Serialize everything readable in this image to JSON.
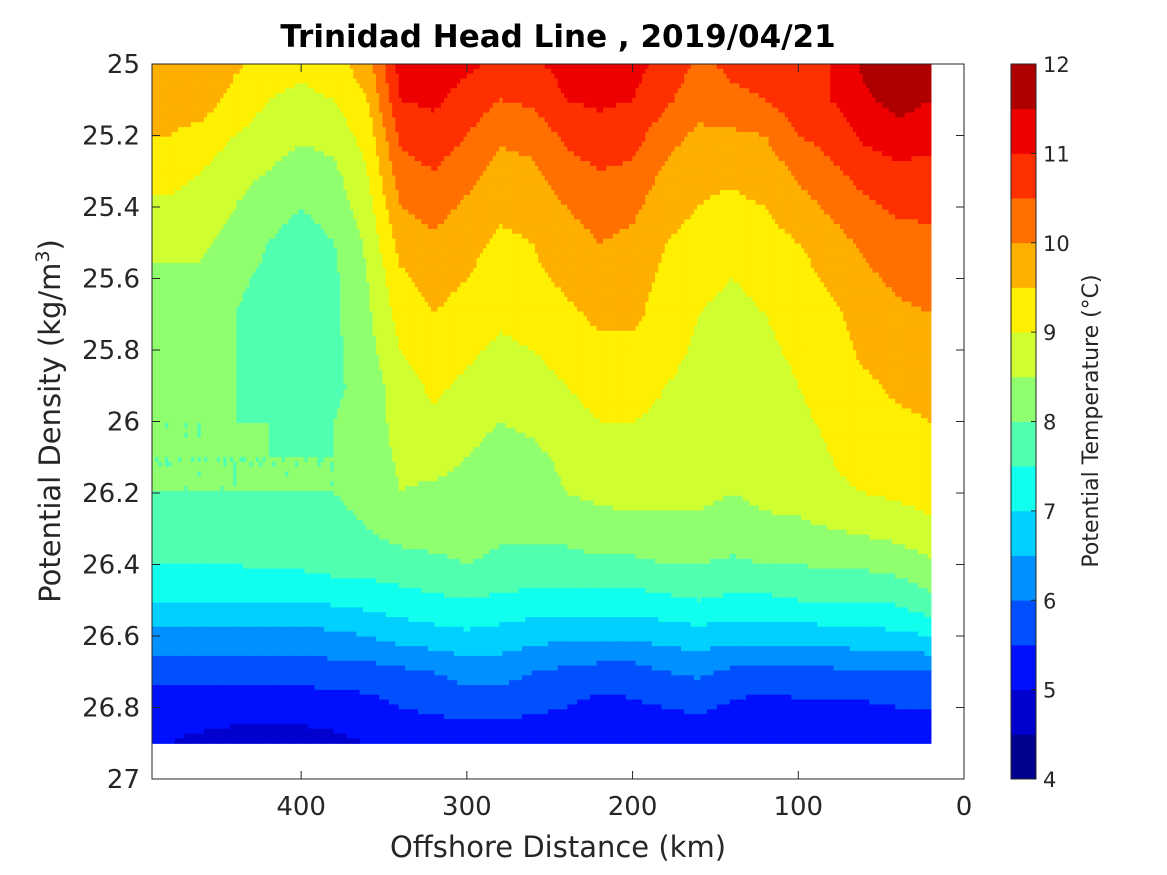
{
  "chart_data": {
    "type": "heatmap",
    "subtype": "filled-contour",
    "title": "Trinidad Head Line , 2019/04/21",
    "xlabel": "Offshore Distance (km)",
    "ylabel": "Potential Density (kg/m3)",
    "ylabel_main": "Potential Density (kg/m",
    "ylabel_sup": "3",
    "ylabel_close": ")",
    "x_axis": {
      "range": [
        490,
        0
      ],
      "reversed": true,
      "ticks": [
        400,
        300,
        200,
        100,
        0
      ],
      "tick_labels": [
        "400",
        "300",
        "200",
        "100",
        "0"
      ]
    },
    "y_axis": {
      "range": [
        25,
        27
      ],
      "reversed": true,
      "ticks": [
        25,
        25.2,
        25.4,
        25.6,
        25.8,
        26,
        26.2,
        26.4,
        26.6,
        26.8,
        27
      ],
      "tick_labels": [
        "25",
        "25.2",
        "25.4",
        "25.6",
        "25.8",
        "26",
        "26.2",
        "26.4",
        "26.6",
        "26.8",
        "27"
      ]
    },
    "colorbar": {
      "label": "Potential Temperature (°C)",
      "range": [
        4,
        12
      ],
      "ticks": [
        4,
        5,
        6,
        7,
        8,
        9,
        10,
        11,
        12
      ],
      "tick_labels": [
        "4",
        "5",
        "6",
        "7",
        "8",
        "9",
        "10",
        "11",
        "12"
      ],
      "levels": [
        4,
        4.5,
        5,
        5.5,
        6,
        6.5,
        7,
        7.5,
        8,
        8.5,
        9,
        9.5,
        10,
        10.5,
        11,
        11.5,
        12
      ],
      "colors": [
        "#00008f",
        "#0000cf",
        "#0010ff",
        "#0050ff",
        "#0090ff",
        "#00d0ff",
        "#10ffef",
        "#50ffaf",
        "#90ff6f",
        "#cfff30",
        "#ffef00",
        "#ffaf00",
        "#ff7000",
        "#ff3000",
        "#ef0000",
        "#af0000"
      ]
    },
    "x": [
      20,
      40,
      60,
      80,
      100,
      120,
      140,
      160,
      180,
      200,
      220,
      240,
      260,
      280,
      300,
      320,
      340,
      360,
      380,
      400,
      420,
      440,
      460,
      480,
      490
    ],
    "y": [
      25,
      25.1,
      25.2,
      25.3,
      25.4,
      25.5,
      25.6,
      25.7,
      25.8,
      25.9,
      26,
      26.1,
      26.2,
      26.3,
      26.4,
      26.5,
      26.6,
      26.7,
      26.8,
      26.9
    ],
    "z": [
      [
        11.7,
        12.0,
        11.6,
        11.0,
        11.0,
        10.7,
        10.6,
        10.4,
        10.8,
        11.2,
        11.3,
        11.2,
        10.9,
        10.9,
        11.1,
        11.3,
        11.2,
        9.8,
        9.3,
        9.1,
        9.2,
        9.6,
        10.0,
        10.0,
        10.0
      ],
      [
        11.5,
        11.7,
        11.4,
        11.0,
        10.8,
        10.5,
        10.4,
        10.2,
        10.6,
        11.0,
        11.1,
        11.0,
        10.6,
        10.5,
        10.8,
        11.1,
        11.0,
        9.5,
        9.0,
        8.9,
        9.0,
        9.3,
        9.8,
        9.8,
        9.8
      ],
      [
        11.2,
        11.3,
        11.1,
        10.7,
        10.5,
        10.0,
        9.9,
        9.9,
        10.2,
        10.7,
        10.8,
        10.6,
        10.2,
        10.1,
        10.5,
        10.8,
        10.6,
        9.2,
        8.7,
        8.6,
        8.8,
        9.0,
        9.3,
        9.5,
        9.5
      ],
      [
        10.8,
        10.9,
        10.7,
        10.4,
        10.1,
        9.7,
        9.6,
        9.6,
        9.9,
        10.4,
        10.5,
        10.3,
        9.9,
        9.8,
        10.2,
        10.5,
        10.3,
        9.0,
        8.4,
        8.2,
        8.5,
        8.7,
        9.0,
        9.2,
        9.2
      ],
      [
        10.6,
        10.6,
        10.4,
        10.1,
        9.8,
        9.5,
        9.4,
        9.5,
        9.7,
        10.1,
        10.2,
        10.0,
        9.7,
        9.6,
        9.9,
        10.2,
        10.0,
        8.8,
        8.2,
        8.0,
        8.2,
        8.5,
        8.8,
        8.9,
        8.9
      ],
      [
        10.4,
        10.3,
        10.1,
        9.8,
        9.5,
        9.3,
        9.2,
        9.3,
        9.5,
        9.9,
        10.0,
        9.8,
        9.5,
        9.4,
        9.7,
        9.9,
        9.7,
        8.6,
        8.0,
        7.8,
        8.0,
        8.3,
        8.6,
        8.6,
        8.6
      ],
      [
        10.2,
        10.1,
        9.9,
        9.6,
        9.3,
        9.1,
        9.0,
        9.1,
        9.4,
        9.7,
        9.8,
        9.6,
        9.4,
        9.2,
        9.5,
        9.7,
        9.4,
        8.5,
        7.9,
        7.7,
        7.9,
        8.1,
        8.4,
        8.4,
        8.4
      ],
      [
        10.0,
        9.9,
        9.7,
        9.4,
        9.2,
        9.0,
        8.9,
        9.0,
        9.3,
        9.6,
        9.6,
        9.4,
        9.2,
        9.1,
        9.3,
        9.5,
        9.2,
        8.4,
        7.9,
        7.7,
        7.8,
        8.0,
        8.2,
        8.2,
        8.2
      ],
      [
        9.9,
        9.8,
        9.6,
        9.3,
        9.1,
        8.9,
        8.8,
        8.9,
        9.2,
        9.4,
        9.4,
        9.2,
        9.0,
        8.9,
        9.1,
        9.3,
        9.0,
        8.3,
        7.9,
        7.7,
        7.8,
        8.0,
        8.1,
        8.1,
        8.1
      ],
      [
        9.7,
        9.6,
        9.4,
        9.2,
        9.0,
        8.8,
        8.7,
        8.8,
        9.0,
        9.2,
        9.2,
        9.0,
        8.8,
        8.7,
        8.9,
        9.1,
        8.8,
        8.2,
        7.9,
        7.8,
        7.9,
        8.0,
        8.1,
        8.1,
        8.1
      ],
      [
        9.5,
        9.4,
        9.3,
        9.1,
        8.9,
        8.8,
        8.7,
        8.8,
        8.9,
        9.0,
        9.0,
        8.8,
        8.6,
        8.5,
        8.7,
        8.9,
        8.7,
        8.2,
        8.0,
        7.9,
        8.0,
        8.0,
        8.0,
        8.0,
        8.0
      ],
      [
        9.4,
        9.3,
        9.2,
        9.0,
        8.8,
        8.7,
        8.6,
        8.7,
        8.8,
        8.9,
        8.8,
        8.6,
        8.4,
        8.3,
        8.5,
        8.7,
        8.6,
        8.2,
        8.0,
        8.0,
        8.0,
        8.0,
        8.0,
        8.0,
        8.0
      ],
      [
        9.2,
        9.1,
        9.0,
        8.9,
        8.7,
        8.6,
        8.5,
        8.6,
        8.6,
        8.7,
        8.6,
        8.5,
        8.3,
        8.2,
        8.3,
        8.4,
        8.5,
        8.1,
        8.0,
        8.0,
        8.0,
        8.0,
        8.0,
        8.0,
        8.0
      ],
      [
        8.9,
        8.7,
        8.6,
        8.5,
        8.4,
        8.4,
        8.3,
        8.4,
        8.4,
        8.3,
        8.3,
        8.2,
        8.1,
        8.1,
        8.2,
        8.2,
        8.2,
        8.0,
        7.9,
        7.9,
        7.9,
        7.9,
        7.9,
        7.9,
        7.9
      ],
      [
        8.4,
        8.2,
        8.1,
        8.1,
        8.0,
        8.0,
        7.9,
        8.0,
        8.0,
        7.9,
        7.9,
        7.8,
        7.9,
        7.9,
        8.0,
        7.9,
        7.8,
        7.7,
        7.7,
        7.6,
        7.6,
        7.5,
        7.5,
        7.5,
        7.5
      ],
      [
        7.9,
        7.6,
        7.5,
        7.5,
        7.5,
        7.4,
        7.4,
        7.5,
        7.4,
        7.3,
        7.3,
        7.3,
        7.3,
        7.4,
        7.5,
        7.4,
        7.3,
        7.2,
        7.1,
        7.0,
        7.0,
        7.0,
        7.0,
        7.0,
        7.0
      ],
      [
        7.0,
        6.9,
        6.8,
        6.8,
        6.7,
        6.7,
        6.7,
        6.8,
        6.7,
        6.6,
        6.6,
        6.6,
        6.7,
        6.8,
        6.9,
        6.8,
        6.7,
        6.5,
        6.4,
        6.3,
        6.3,
        6.3,
        6.3,
        6.3,
        6.3
      ],
      [
        6.0,
        6.0,
        6.0,
        5.9,
        5.8,
        5.8,
        5.9,
        6.1,
        6.0,
        5.8,
        5.8,
        5.9,
        6.0,
        6.2,
        6.2,
        6.0,
        5.9,
        5.8,
        5.8,
        5.7,
        5.7,
        5.7,
        5.7,
        5.7,
        5.7
      ],
      [
        5.5,
        5.5,
        5.4,
        5.4,
        5.4,
        5.3,
        5.4,
        5.6,
        5.5,
        5.4,
        5.3,
        5.5,
        5.6,
        5.7,
        5.7,
        5.6,
        5.5,
        5.3,
        5.2,
        5.2,
        5.2,
        5.2,
        5.2,
        5.2,
        5.2
      ],
      [
        5.1,
        5.1,
        5.1,
        5.1,
        5.1,
        5.1,
        5.1,
        5.1,
        5.1,
        5.1,
        5.1,
        5.1,
        5.1,
        5.1,
        5.1,
        5.1,
        5.1,
        5.0,
        4.9,
        4.8,
        4.7,
        4.8,
        4.9,
        5.0,
        5.0
      ]
    ]
  }
}
